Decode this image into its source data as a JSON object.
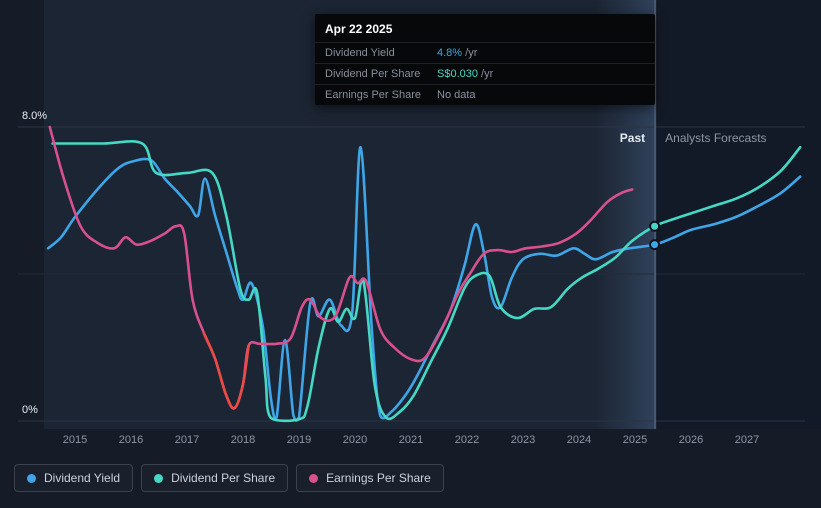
{
  "tooltip": {
    "date": "Apr 22 2025",
    "rows": [
      {
        "label": "Dividend Yield",
        "value": "4.8%",
        "suffix": " /yr",
        "color": "#3ea6e8"
      },
      {
        "label": "Dividend Per Share",
        "value": "S$0.030",
        "suffix": " /yr",
        "color": "#45d9c5"
      },
      {
        "label": "Earnings Per Share",
        "value": "No data",
        "suffix": "",
        "color": "#8a93a3"
      }
    ]
  },
  "legend": [
    {
      "label": "Dividend Yield",
      "color": "#3ea6e8"
    },
    {
      "label": "Dividend Per Share",
      "color": "#45d9c5"
    },
    {
      "label": "Earnings Per Share",
      "color": "#d9508f"
    }
  ],
  "chart_data": {
    "type": "line",
    "unit": "percent_yield",
    "y_axis": {
      "min": 0,
      "max": 8,
      "tick_labels": [
        {
          "label": "8.0%",
          "value": 8
        },
        {
          "label": "0%",
          "value": 0
        }
      ],
      "grid_values": [
        8,
        4,
        0
      ]
    },
    "x_axis": {
      "min": 2014.45,
      "max": 2028,
      "ticks": [
        2015,
        2016,
        2017,
        2018,
        2019,
        2020,
        2021,
        2022,
        2023,
        2024,
        2025,
        2026,
        2027
      ]
    },
    "divider_year": 2025.36,
    "highlight_band": [
      2024.3,
      2025.36
    ],
    "region_labels": {
      "past": "Past",
      "forecast": "Analysts Forecasts"
    },
    "series": [
      {
        "name": "Dividend Yield",
        "color": "#3ea6e8",
        "marker": [
          2025.35,
          4.8
        ],
        "points": [
          [
            2014.52,
            4.7
          ],
          [
            2014.75,
            5.0
          ],
          [
            2015.0,
            5.55
          ],
          [
            2015.4,
            6.3
          ],
          [
            2015.75,
            6.85
          ],
          [
            2016.0,
            7.05
          ],
          [
            2016.35,
            7.1
          ],
          [
            2016.6,
            6.6
          ],
          [
            2016.85,
            6.2
          ],
          [
            2017.05,
            5.85
          ],
          [
            2017.2,
            5.6
          ],
          [
            2017.32,
            6.6
          ],
          [
            2017.5,
            5.6
          ],
          [
            2017.7,
            4.6
          ],
          [
            2017.9,
            3.6
          ],
          [
            2018.0,
            3.3
          ],
          [
            2018.15,
            3.75
          ],
          [
            2018.35,
            2.6
          ],
          [
            2018.5,
            0.6
          ],
          [
            2018.6,
            0.1
          ],
          [
            2018.75,
            2.2
          ],
          [
            2018.9,
            0.15
          ],
          [
            2019.0,
            0.1
          ],
          [
            2019.2,
            3.2
          ],
          [
            2019.35,
            2.85
          ],
          [
            2019.55,
            3.3
          ],
          [
            2019.75,
            2.6
          ],
          [
            2019.95,
            2.95
          ],
          [
            2020.1,
            7.45
          ],
          [
            2020.3,
            2.5
          ],
          [
            2020.45,
            0.15
          ],
          [
            2020.65,
            0.25
          ],
          [
            2020.9,
            0.7
          ],
          [
            2021.1,
            1.2
          ],
          [
            2021.4,
            2.1
          ],
          [
            2021.7,
            3.0
          ],
          [
            2021.95,
            4.2
          ],
          [
            2022.15,
            5.35
          ],
          [
            2022.3,
            4.6
          ],
          [
            2022.45,
            3.35
          ],
          [
            2022.6,
            3.1
          ],
          [
            2022.8,
            3.9
          ],
          [
            2023.0,
            4.4
          ],
          [
            2023.3,
            4.55
          ],
          [
            2023.6,
            4.5
          ],
          [
            2023.9,
            4.7
          ],
          [
            2024.1,
            4.55
          ],
          [
            2024.3,
            4.4
          ],
          [
            2024.6,
            4.6
          ],
          [
            2024.9,
            4.7
          ],
          [
            2025.35,
            4.8
          ],
          [
            2025.7,
            5.0
          ],
          [
            2026.0,
            5.2
          ],
          [
            2026.4,
            5.35
          ],
          [
            2026.8,
            5.55
          ],
          [
            2027.2,
            5.85
          ],
          [
            2027.6,
            6.2
          ],
          [
            2027.95,
            6.65
          ]
        ]
      },
      {
        "name": "Dividend Per Share",
        "color": "#45d9c5",
        "marker": [
          2025.35,
          5.3
        ],
        "points": [
          [
            2014.6,
            7.55
          ],
          [
            2015.5,
            7.55
          ],
          [
            2016.2,
            7.55
          ],
          [
            2016.45,
            6.75
          ],
          [
            2017.0,
            6.75
          ],
          [
            2017.45,
            6.75
          ],
          [
            2017.7,
            5.6
          ],
          [
            2017.95,
            3.6
          ],
          [
            2018.1,
            3.3
          ],
          [
            2018.25,
            3.5
          ],
          [
            2018.4,
            1.2
          ],
          [
            2018.5,
            0.08
          ],
          [
            2019.0,
            0.05
          ],
          [
            2019.15,
            0.4
          ],
          [
            2019.35,
            2.0
          ],
          [
            2019.55,
            3.05
          ],
          [
            2019.7,
            2.7
          ],
          [
            2019.85,
            3.05
          ],
          [
            2020.0,
            2.8
          ],
          [
            2020.15,
            3.8
          ],
          [
            2020.35,
            1.0
          ],
          [
            2020.55,
            0.1
          ],
          [
            2020.8,
            0.25
          ],
          [
            2021.05,
            0.7
          ],
          [
            2021.35,
            1.6
          ],
          [
            2021.65,
            2.5
          ],
          [
            2021.95,
            3.6
          ],
          [
            2022.15,
            3.95
          ],
          [
            2022.4,
            3.95
          ],
          [
            2022.6,
            3.1
          ],
          [
            2022.9,
            2.8
          ],
          [
            2023.2,
            3.05
          ],
          [
            2023.5,
            3.1
          ],
          [
            2023.8,
            3.6
          ],
          [
            2024.05,
            3.9
          ],
          [
            2024.35,
            4.15
          ],
          [
            2024.65,
            4.45
          ],
          [
            2024.95,
            4.9
          ],
          [
            2025.35,
            5.3
          ],
          [
            2025.7,
            5.5
          ],
          [
            2026.0,
            5.65
          ],
          [
            2026.4,
            5.85
          ],
          [
            2026.8,
            6.05
          ],
          [
            2027.2,
            6.35
          ],
          [
            2027.6,
            6.8
          ],
          [
            2027.95,
            7.45
          ]
        ]
      },
      {
        "name": "Earnings Per Share",
        "color": "#d9508f",
        "negative_color": "#ea4b42",
        "negative_range": [
          2017.3,
          2018.1
        ],
        "points": [
          [
            2014.55,
            8.0
          ],
          [
            2014.8,
            6.6
          ],
          [
            2015.1,
            5.3
          ],
          [
            2015.4,
            4.85
          ],
          [
            2015.7,
            4.7
          ],
          [
            2015.9,
            5.0
          ],
          [
            2016.1,
            4.8
          ],
          [
            2016.35,
            4.9
          ],
          [
            2016.6,
            5.1
          ],
          [
            2016.8,
            5.3
          ],
          [
            2016.95,
            5.1
          ],
          [
            2017.1,
            3.3
          ],
          [
            2017.3,
            2.4
          ],
          [
            2017.5,
            1.7
          ],
          [
            2017.7,
            0.7
          ],
          [
            2017.85,
            0.35
          ],
          [
            2018.0,
            1.0
          ],
          [
            2018.1,
            2.05
          ],
          [
            2018.3,
            2.1
          ],
          [
            2018.6,
            2.1
          ],
          [
            2018.85,
            2.25
          ],
          [
            2019.05,
            3.1
          ],
          [
            2019.2,
            3.3
          ],
          [
            2019.4,
            2.8
          ],
          [
            2019.65,
            2.85
          ],
          [
            2019.9,
            3.9
          ],
          [
            2020.05,
            3.75
          ],
          [
            2020.2,
            3.8
          ],
          [
            2020.45,
            2.5
          ],
          [
            2020.7,
            2.0
          ],
          [
            2021.0,
            1.68
          ],
          [
            2021.25,
            1.72
          ],
          [
            2021.55,
            2.5
          ],
          [
            2021.85,
            3.5
          ],
          [
            2022.05,
            4.0
          ],
          [
            2022.3,
            4.55
          ],
          [
            2022.55,
            4.65
          ],
          [
            2022.8,
            4.6
          ],
          [
            2023.05,
            4.7
          ],
          [
            2023.35,
            4.75
          ],
          [
            2023.65,
            4.85
          ],
          [
            2023.95,
            5.1
          ],
          [
            2024.2,
            5.45
          ],
          [
            2024.5,
            5.95
          ],
          [
            2024.75,
            6.2
          ],
          [
            2024.95,
            6.3
          ]
        ]
      }
    ]
  }
}
